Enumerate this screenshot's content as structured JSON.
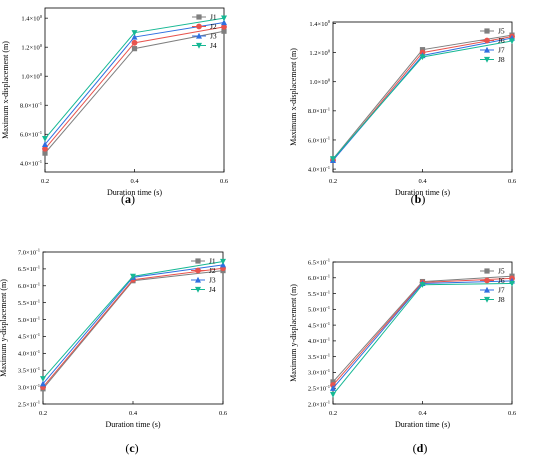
{
  "colors": {
    "J1": "#7f7f7f",
    "J2": "#e8534d",
    "J3": "#2f6fe0",
    "J4": "#16b894",
    "J5": "#7f7f7f",
    "J6": "#e8534d",
    "J7": "#2f6fe0",
    "J8": "#16b894"
  },
  "chart_data": [
    {
      "type": "line",
      "panel_label": "a",
      "xlabel": "Duration time (s)",
      "ylabel": "Maximum x-displacement (m)",
      "x": [
        0.2,
        0.4,
        0.6
      ],
      "x_ticks": [
        "0.2",
        "0.4",
        "0.6"
      ],
      "xlim": [
        0.2,
        0.6
      ],
      "ylim": [
        0.34,
        1.47
      ],
      "y_ticks": [
        {
          "v": 0.4,
          "b": "4.0×10",
          "e": "-1"
        },
        {
          "v": 0.6,
          "b": "6.0×10",
          "e": "-1"
        },
        {
          "v": 0.8,
          "b": "8.0×10",
          "e": "-1"
        },
        {
          "v": 1.0,
          "b": "1.0×10",
          "e": "0"
        },
        {
          "v": 1.2,
          "b": "1.2×10",
          "e": "0"
        },
        {
          "v": 1.4,
          "b": "1.4×10",
          "e": "0"
        }
      ],
      "legend_position": "top-right",
      "series": [
        {
          "name": "J1",
          "marker": "square",
          "values": [
            0.47,
            1.19,
            1.31
          ]
        },
        {
          "name": "J2",
          "marker": "circle",
          "values": [
            0.5,
            1.23,
            1.34
          ]
        },
        {
          "name": "J3",
          "marker": "triangle-up",
          "values": [
            0.53,
            1.27,
            1.37
          ]
        },
        {
          "name": "J4",
          "marker": "triangle-down",
          "values": [
            0.57,
            1.3,
            1.4
          ]
        }
      ]
    },
    {
      "type": "line",
      "panel_label": "b",
      "xlabel": "Duration time (s)",
      "ylabel": "Maximum x-displacement (m)",
      "x": [
        0.2,
        0.4,
        0.6
      ],
      "x_ticks": [
        "0.2",
        "0.4",
        "0.6"
      ],
      "xlim": [
        0.2,
        0.6
      ],
      "ylim": [
        0.38,
        1.41
      ],
      "y_ticks": [
        {
          "v": 0.4,
          "b": "4.0×10",
          "e": "-1"
        },
        {
          "v": 0.6,
          "b": "6.0×10",
          "e": "-1"
        },
        {
          "v": 0.8,
          "b": "8.0×10",
          "e": "-1"
        },
        {
          "v": 1.0,
          "b": "1.0×10",
          "e": "0"
        },
        {
          "v": 1.2,
          "b": "1.2×10",
          "e": "0"
        },
        {
          "v": 1.4,
          "b": "1.4×10",
          "e": "0"
        }
      ],
      "legend_position": "top-right",
      "series": [
        {
          "name": "J5",
          "marker": "square",
          "values": [
            0.47,
            1.22,
            1.32
          ]
        },
        {
          "name": "J6",
          "marker": "circle",
          "values": [
            0.46,
            1.2,
            1.31
          ]
        },
        {
          "name": "J7",
          "marker": "triangle-up",
          "values": [
            0.46,
            1.18,
            1.3
          ]
        },
        {
          "name": "J8",
          "marker": "triangle-down",
          "values": [
            0.47,
            1.17,
            1.28
          ]
        }
      ]
    },
    {
      "type": "line",
      "panel_label": "c",
      "xlabel": "Duration time (s)",
      "ylabel": "Maximum y-displacement (m)",
      "x": [
        0.2,
        0.4,
        0.6
      ],
      "x_ticks": [
        "0.2",
        "0.4",
        "0.6"
      ],
      "xlim": [
        0.2,
        0.6
      ],
      "ylim": [
        0.25,
        0.7
      ],
      "y_ticks": [
        {
          "v": 0.25,
          "b": "2.5×10",
          "e": "-1"
        },
        {
          "v": 0.3,
          "b": "3.0×10",
          "e": "-1"
        },
        {
          "v": 0.35,
          "b": "3.5×10",
          "e": "-1"
        },
        {
          "v": 0.4,
          "b": "4.0×10",
          "e": "-1"
        },
        {
          "v": 0.45,
          "b": "4.5×10",
          "e": "-1"
        },
        {
          "v": 0.5,
          "b": "5.0×10",
          "e": "-1"
        },
        {
          "v": 0.55,
          "b": "5.5×10",
          "e": "-1"
        },
        {
          "v": 0.6,
          "b": "6.0×10",
          "e": "-1"
        },
        {
          "v": 0.65,
          "b": "6.5×10",
          "e": "-1"
        },
        {
          "v": 0.7,
          "b": "7.0×10",
          "e": "-1"
        }
      ],
      "legend_position": "top-right",
      "series": [
        {
          "name": "J1",
          "marker": "square",
          "values": [
            0.295,
            0.615,
            0.645
          ]
        },
        {
          "name": "J2",
          "marker": "circle",
          "values": [
            0.3,
            0.618,
            0.652
          ]
        },
        {
          "name": "J3",
          "marker": "triangle-up",
          "values": [
            0.31,
            0.625,
            0.662
          ]
        },
        {
          "name": "J4",
          "marker": "triangle-down",
          "values": [
            0.325,
            0.628,
            0.672
          ]
        }
      ]
    },
    {
      "type": "line",
      "panel_label": "d",
      "xlabel": "Duration time (s)",
      "ylabel": "Maximum y-displacement (m)",
      "x": [
        0.2,
        0.4,
        0.6
      ],
      "x_ticks": [
        "0.2",
        "0.4",
        "0.6"
      ],
      "xlim": [
        0.2,
        0.6
      ],
      "ylim": [
        0.2,
        0.65
      ],
      "y_ticks": [
        {
          "v": 0.2,
          "b": "2.0×10",
          "e": "-1"
        },
        {
          "v": 0.25,
          "b": "2.5×10",
          "e": "-1"
        },
        {
          "v": 0.3,
          "b": "3.0×10",
          "e": "-1"
        },
        {
          "v": 0.35,
          "b": "3.5×10",
          "e": "-1"
        },
        {
          "v": 0.4,
          "b": "4.0×10",
          "e": "-1"
        },
        {
          "v": 0.45,
          "b": "4.5×10",
          "e": "-1"
        },
        {
          "v": 0.5,
          "b": "5.0×10",
          "e": "-1"
        },
        {
          "v": 0.55,
          "b": "5.5×10",
          "e": "-1"
        },
        {
          "v": 0.6,
          "b": "6.0×10",
          "e": "-1"
        },
        {
          "v": 0.65,
          "b": "6.5×10",
          "e": "-1"
        }
      ],
      "legend_position": "top-right",
      "series": [
        {
          "name": "J5",
          "marker": "square",
          "values": [
            0.27,
            0.588,
            0.605
          ]
        },
        {
          "name": "J6",
          "marker": "circle",
          "values": [
            0.26,
            0.585,
            0.598
          ]
        },
        {
          "name": "J7",
          "marker": "triangle-up",
          "values": [
            0.25,
            0.582,
            0.59
          ]
        },
        {
          "name": "J8",
          "marker": "triangle-down",
          "values": [
            0.23,
            0.578,
            0.582
          ]
        }
      ]
    }
  ]
}
